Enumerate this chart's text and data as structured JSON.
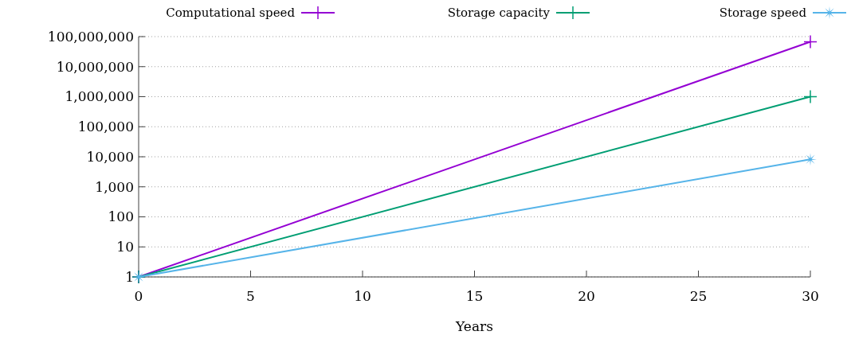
{
  "chart_data": {
    "type": "line",
    "xlabel": "Years",
    "x": [
      0,
      30
    ],
    "series": [
      {
        "name": "Computational speed",
        "color": "#9400d3",
        "marker": "cross",
        "values": [
          1,
          67108864
        ]
      },
      {
        "name": "Storage capacity",
        "color": "#009e73",
        "marker": "cross",
        "values": [
          1,
          1000000
        ]
      },
      {
        "name": "Storage speed",
        "color": "#56b4e9",
        "marker": "star",
        "values": [
          1,
          8192
        ]
      }
    ],
    "log": "y",
    "xlim": [
      0,
      30
    ],
    "xticks": [
      0,
      5,
      10,
      15,
      20,
      25,
      30
    ],
    "ylim": [
      1,
      100000000
    ],
    "yticks": [
      1,
      10,
      100,
      {
        "value": 1000,
        "label": "1,000"
      },
      {
        "value": 10000,
        "label": "10,000"
      },
      {
        "value": 100000,
        "label": "100,000"
      },
      {
        "value": 1000000,
        "label": "1,000,000"
      },
      {
        "value": 10000000,
        "label": "10,000,000"
      },
      {
        "value": 100000000,
        "label": "100,000,000"
      }
    ],
    "grid": "y",
    "legend": "top",
    "line_style": "solid"
  }
}
